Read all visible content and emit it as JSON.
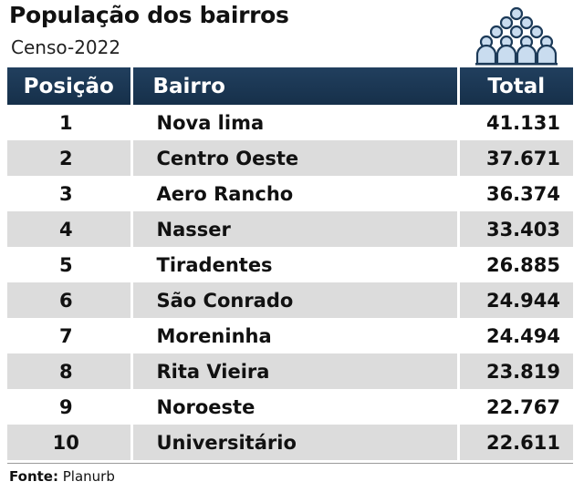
{
  "header": {
    "title": "População dos bairros",
    "subtitle": "Censo-2022",
    "icon": "crowd-icon"
  },
  "table": {
    "columns": [
      "Posição",
      "Bairro",
      "Total"
    ],
    "rows": [
      {
        "pos": "1",
        "name": "Nova lima",
        "total": "41.131"
      },
      {
        "pos": "2",
        "name": "Centro Oeste",
        "total": "37.671"
      },
      {
        "pos": "3",
        "name": "Aero Rancho",
        "total": "36.374"
      },
      {
        "pos": "4",
        "name": "Nasser",
        "total": "33.403"
      },
      {
        "pos": "5",
        "name": "Tiradentes",
        "total": "26.885"
      },
      {
        "pos": "6",
        "name": "São Conrado",
        "total": "24.944"
      },
      {
        "pos": "7",
        "name": "Moreninha",
        "total": "24.494"
      },
      {
        "pos": "8",
        "name": "Rita Vieira",
        "total": "23.819"
      },
      {
        "pos": "9",
        "name": "Noroeste",
        "total": "22.767"
      },
      {
        "pos": "10",
        "name": "Universitário",
        "total": "22.611"
      }
    ]
  },
  "footer": {
    "source_label": "Fonte:",
    "source_value": "Planurb"
  },
  "colors": {
    "header_bg": "#1c3a58",
    "stripe": "#dcdcdc",
    "icon_fill": "#c9dcef",
    "icon_stroke": "#1c3a58"
  }
}
